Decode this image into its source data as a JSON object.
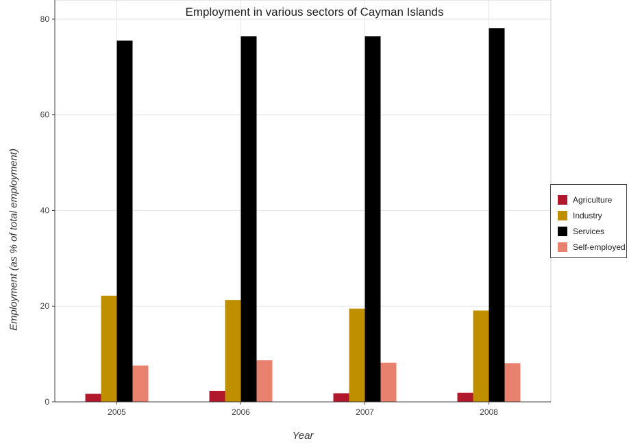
{
  "chart_data": {
    "type": "bar",
    "title": "Employment in various sectors of Cayman Islands",
    "xlabel": "Year",
    "ylabel": "Employment (as % of total employment)",
    "categories": [
      "2005",
      "2006",
      "2007",
      "2008"
    ],
    "ylim": [
      0,
      84
    ],
    "yticks": [
      0,
      20,
      40,
      60,
      80
    ],
    "grid": true,
    "legend_position": "right",
    "series": [
      {
        "name": "Agriculture",
        "color": "#b2182b",
        "values": [
          1.7,
          2.3,
          1.8,
          1.9
        ]
      },
      {
        "name": "Industry",
        "color": "#bf8f00",
        "values": [
          22.2,
          21.3,
          19.5,
          19.1
        ]
      },
      {
        "name": "Services",
        "color": "#000000",
        "values": [
          75.5,
          76.4,
          76.4,
          78.1
        ]
      },
      {
        "name": "Self-employed",
        "color": "#e8826f",
        "values": [
          7.6,
          8.7,
          8.2,
          8.1
        ]
      }
    ]
  }
}
